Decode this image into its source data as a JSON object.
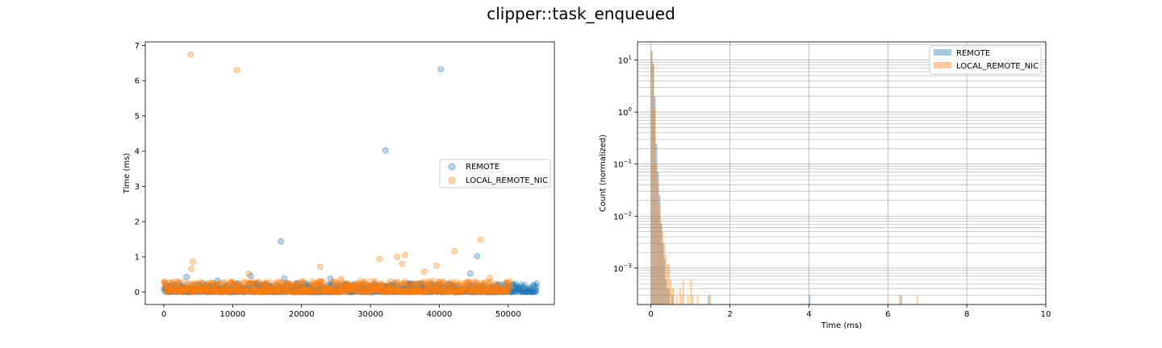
{
  "figure": {
    "title": "clipper::task_enqueued"
  },
  "chart_data": [
    {
      "type": "scatter",
      "title": "",
      "xlabel": "",
      "ylabel": "Time (ms)",
      "xlim": [
        -2700,
        56700
      ],
      "ylim": [
        -0.35,
        7.1
      ],
      "x_ticks": [
        0,
        10000,
        20000,
        30000,
        40000,
        50000
      ],
      "y_ticks": [
        0,
        1,
        2,
        3,
        4,
        5,
        6,
        7
      ],
      "grid": false,
      "legend_position": "center-right",
      "series": [
        {
          "name": "REMOTE",
          "color": "#1f77b4",
          "base_band": {
            "x_range": [
              0,
              54200
            ],
            "y_range": [
              0.0,
              0.26
            ]
          },
          "outliers": [
            {
              "x": 40200,
              "y": 6.32
            },
            {
              "x": 32200,
              "y": 4.02
            },
            {
              "x": 17000,
              "y": 1.44
            },
            {
              "x": 45500,
              "y": 1.02
            },
            {
              "x": 44500,
              "y": 0.53
            },
            {
              "x": 12600,
              "y": 0.46
            },
            {
              "x": 3300,
              "y": 0.43
            },
            {
              "x": 17500,
              "y": 0.39
            },
            {
              "x": 24200,
              "y": 0.38
            },
            {
              "x": 7800,
              "y": 0.32
            },
            {
              "x": 35300,
              "y": 0.18
            }
          ]
        },
        {
          "name": "LOCAL_REMOTE_NIC",
          "color": "#ff7f0e",
          "base_band": {
            "x_range": [
              0,
              50300
            ],
            "y_range": [
              0.0,
              0.32
            ]
          },
          "outliers": [
            {
              "x": 3900,
              "y": 6.74
            },
            {
              "x": 10600,
              "y": 6.3
            },
            {
              "x": 46000,
              "y": 1.49
            },
            {
              "x": 42200,
              "y": 1.16
            },
            {
              "x": 35000,
              "y": 1.05
            },
            {
              "x": 33900,
              "y": 1.0
            },
            {
              "x": 31300,
              "y": 0.94
            },
            {
              "x": 4200,
              "y": 0.86
            },
            {
              "x": 34600,
              "y": 0.8
            },
            {
              "x": 39600,
              "y": 0.75
            },
            {
              "x": 22700,
              "y": 0.72
            },
            {
              "x": 4000,
              "y": 0.66
            },
            {
              "x": 37800,
              "y": 0.58
            },
            {
              "x": 12300,
              "y": 0.52
            },
            {
              "x": 47300,
              "y": 0.4
            },
            {
              "x": 25700,
              "y": 0.37
            },
            {
              "x": 20100,
              "y": 0.31
            },
            {
              "x": 29200,
              "y": 0.29
            },
            {
              "x": 14900,
              "y": 0.25
            },
            {
              "x": 9700,
              "y": 0.27
            }
          ]
        }
      ]
    },
    {
      "type": "histogram",
      "title": "",
      "xlabel": "Time (ms)",
      "ylabel": "Count (normalized)",
      "xlim": [
        -0.34,
        10.0
      ],
      "ylim_log10": [
        -3.7,
        1.35
      ],
      "y_scale": "log",
      "x_ticks": [
        0,
        2,
        4,
        6,
        8,
        10
      ],
      "y_ticks": [
        "10^-3",
        "10^-2",
        "10^-1",
        "10^0",
        "10^1"
      ],
      "grid": true,
      "legend_position": "upper-right",
      "bin_width": 0.04,
      "series": [
        {
          "name": "REMOTE",
          "color": "#1f77b4",
          "bins": [
            [
              0.0,
              15.0
            ],
            [
              0.04,
              8.0
            ],
            [
              0.08,
              2.0
            ],
            [
              0.12,
              0.25
            ],
            [
              0.16,
              0.07
            ],
            [
              0.2,
              0.025
            ],
            [
              0.24,
              0.007
            ],
            [
              0.28,
              0.003
            ],
            [
              0.32,
              0.0015
            ],
            [
              0.36,
              0.0006
            ],
            [
              0.4,
              0.0004
            ],
            [
              0.44,
              0.0004
            ],
            [
              0.52,
              0.0003
            ],
            [
              1.44,
              0.0003
            ],
            [
              4.0,
              0.0003
            ],
            [
              6.32,
              0.0003
            ]
          ]
        },
        {
          "name": "LOCAL_REMOTE_NIC",
          "color": "#ff7f0e",
          "bins": [
            [
              0.0,
              14.0
            ],
            [
              0.04,
              9.0
            ],
            [
              0.08,
              1.2
            ],
            [
              0.12,
              0.1
            ],
            [
              0.16,
              0.045
            ],
            [
              0.2,
              0.015
            ],
            [
              0.24,
              0.008
            ],
            [
              0.28,
              0.005
            ],
            [
              0.32,
              0.003
            ],
            [
              0.36,
              0.0018
            ],
            [
              0.4,
              0.0012
            ],
            [
              0.44,
              0.0012
            ],
            [
              0.48,
              0.0006
            ],
            [
              0.52,
              0.0004
            ],
            [
              0.56,
              0.0004
            ],
            [
              0.64,
              0.0003
            ],
            [
              0.72,
              0.0004
            ],
            [
              0.76,
              0.0003
            ],
            [
              0.8,
              0.0006
            ],
            [
              0.92,
              0.0003
            ],
            [
              1.0,
              0.0006
            ],
            [
              1.04,
              0.0003
            ],
            [
              1.16,
              0.0003
            ],
            [
              1.48,
              0.0003
            ],
            [
              6.28,
              0.0003
            ],
            [
              6.72,
              0.0003
            ]
          ]
        }
      ]
    }
  ]
}
